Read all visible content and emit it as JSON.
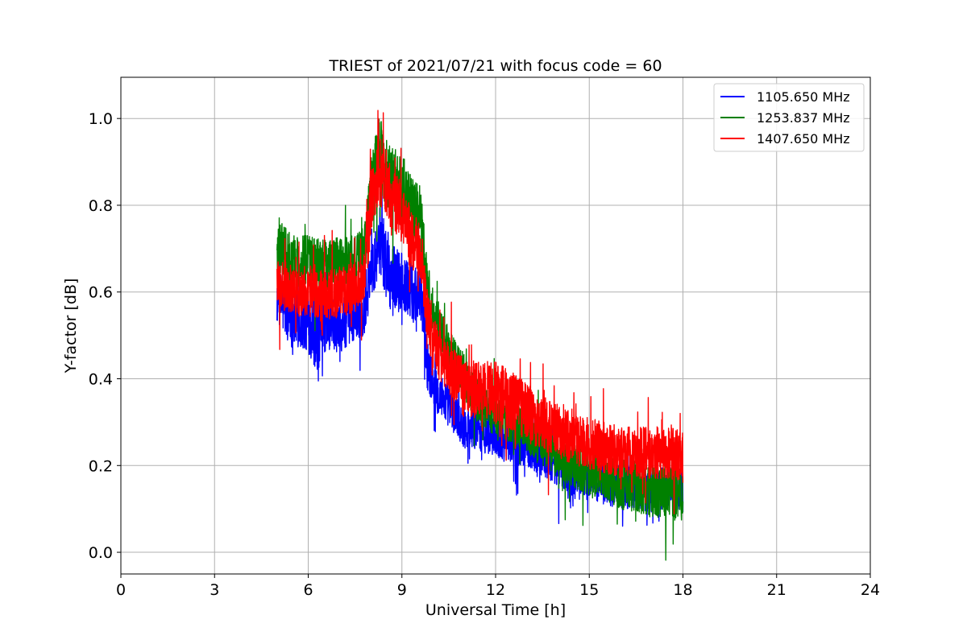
{
  "chart_data": {
    "type": "line",
    "title": "TRIEST of 2021/07/21 with focus code = 60",
    "xlabel": "Universal Time [h]",
    "ylabel": "Y-factor [dB]",
    "xlim": [
      0,
      24
    ],
    "ylim": [
      -0.05,
      1.095
    ],
    "xticks": [
      0,
      3,
      6,
      9,
      12,
      15,
      18,
      21,
      24
    ],
    "yticks": [
      0.0,
      0.2,
      0.4,
      0.6,
      0.8,
      1.0
    ],
    "xtick_labels": [
      "0",
      "3",
      "6",
      "9",
      "12",
      "15",
      "18",
      "21",
      "24"
    ],
    "ytick_labels": [
      "0.0",
      "0.2",
      "0.4",
      "0.6",
      "0.8",
      "1.0"
    ],
    "grid": true,
    "legend": "top-right",
    "series": [
      {
        "name": "1105.650 MHz",
        "color": "#0000ff",
        "x": [
          5.0,
          5.5,
          6.0,
          6.3,
          6.5,
          7.0,
          7.5,
          7.8,
          8.0,
          8.3,
          8.6,
          9.0,
          9.3,
          9.6,
          9.8,
          10.0,
          10.5,
          11.0,
          11.5,
          12.0,
          12.5,
          13.0,
          13.5,
          14.0,
          14.5,
          15.0,
          15.5,
          16.0,
          16.5,
          17.0,
          17.5,
          18.0
        ],
        "values": [
          0.59,
          0.54,
          0.53,
          0.5,
          0.53,
          0.52,
          0.55,
          0.56,
          0.66,
          0.72,
          0.64,
          0.62,
          0.6,
          0.6,
          0.44,
          0.38,
          0.34,
          0.29,
          0.28,
          0.27,
          0.25,
          0.25,
          0.22,
          0.2,
          0.17,
          0.17,
          0.16,
          0.15,
          0.15,
          0.14,
          0.15,
          0.14
        ],
        "amplitude": [
          0.07,
          0.07,
          0.07,
          0.09,
          0.07,
          0.06,
          0.06,
          0.06,
          0.08,
          0.08,
          0.08,
          0.07,
          0.07,
          0.07,
          0.06,
          0.05,
          0.05,
          0.05,
          0.05,
          0.05,
          0.05,
          0.05,
          0.05,
          0.05,
          0.05,
          0.05,
          0.05,
          0.05,
          0.05,
          0.05,
          0.05,
          0.05
        ]
      },
      {
        "name": "1253.837 MHz",
        "color": "#008000",
        "x": [
          5.0,
          5.5,
          6.0,
          6.5,
          7.0,
          7.5,
          7.8,
          8.0,
          8.3,
          8.6,
          9.0,
          9.3,
          9.6,
          9.8,
          10.0,
          10.5,
          11.0,
          11.5,
          12.0,
          12.5,
          13.0,
          13.5,
          14.0,
          14.5,
          15.0,
          15.5,
          16.0,
          16.5,
          17.0,
          17.5,
          18.0
        ],
        "values": [
          0.71,
          0.67,
          0.67,
          0.66,
          0.67,
          0.68,
          0.69,
          0.84,
          0.92,
          0.86,
          0.84,
          0.8,
          0.78,
          0.62,
          0.56,
          0.47,
          0.4,
          0.34,
          0.32,
          0.3,
          0.28,
          0.25,
          0.22,
          0.2,
          0.18,
          0.17,
          0.16,
          0.15,
          0.14,
          0.14,
          0.13
        ],
        "amplitude": [
          0.07,
          0.06,
          0.06,
          0.06,
          0.06,
          0.06,
          0.06,
          0.08,
          0.09,
          0.08,
          0.08,
          0.07,
          0.07,
          0.06,
          0.05,
          0.05,
          0.05,
          0.05,
          0.05,
          0.05,
          0.05,
          0.05,
          0.05,
          0.05,
          0.05,
          0.05,
          0.06,
          0.06,
          0.06,
          0.06,
          0.06
        ]
      },
      {
        "name": "1407.650 MHz",
        "color": "#ff0000",
        "x": [
          5.0,
          5.5,
          6.0,
          6.5,
          7.0,
          7.5,
          7.8,
          8.0,
          8.3,
          8.6,
          9.0,
          9.3,
          9.6,
          9.8,
          10.0,
          10.5,
          11.0,
          11.5,
          12.0,
          12.5,
          13.0,
          13.5,
          14.0,
          14.5,
          15.0,
          15.5,
          16.0,
          16.5,
          17.0,
          17.5,
          18.0
        ],
        "values": [
          0.62,
          0.6,
          0.6,
          0.59,
          0.6,
          0.61,
          0.63,
          0.8,
          0.88,
          0.82,
          0.78,
          0.72,
          0.7,
          0.55,
          0.48,
          0.42,
          0.38,
          0.37,
          0.37,
          0.35,
          0.32,
          0.3,
          0.28,
          0.26,
          0.25,
          0.24,
          0.23,
          0.23,
          0.23,
          0.23,
          0.22
        ],
        "amplitude": [
          0.06,
          0.06,
          0.06,
          0.06,
          0.06,
          0.06,
          0.06,
          0.08,
          0.08,
          0.08,
          0.07,
          0.07,
          0.07,
          0.06,
          0.06,
          0.06,
          0.07,
          0.07,
          0.07,
          0.07,
          0.07,
          0.06,
          0.06,
          0.06,
          0.06,
          0.06,
          0.06,
          0.06,
          0.06,
          0.06,
          0.06
        ]
      }
    ]
  }
}
